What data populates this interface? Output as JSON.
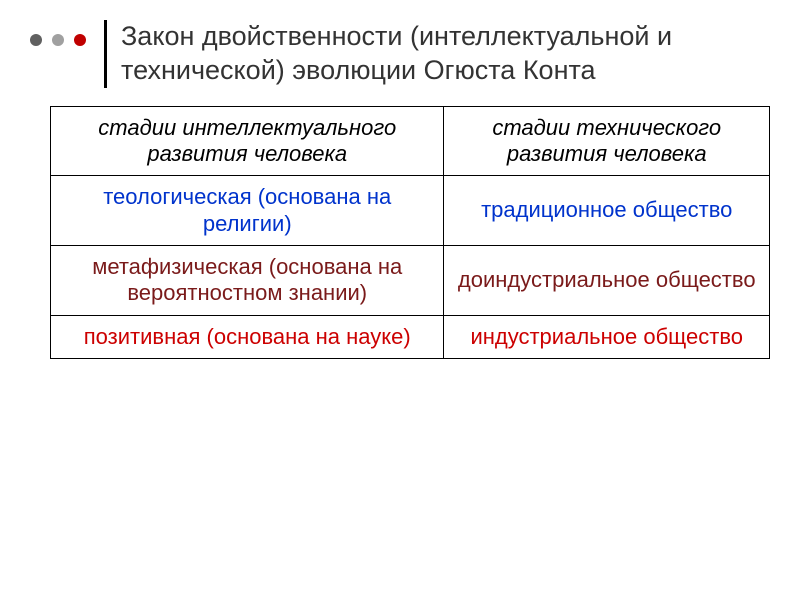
{
  "title": "Закон двойственности (интеллектуальной и технической) эволюции Огюста Конта",
  "bullets": {
    "colors": [
      "#606060",
      "#a0a0a0",
      "#c00000"
    ]
  },
  "table": {
    "border_color": "#000000",
    "header_color": "#000000",
    "row_colors": [
      "#0033cc",
      "#7a1a1a",
      "#cc0000"
    ],
    "columns": [
      "стадии интеллектуального развития человека",
      "стадии технического развития человека"
    ],
    "rows": [
      [
        "теологическая (основана на религии)",
        "традиционное общество"
      ],
      [
        "метафизическая (основана на вероятностном знании)",
        "доиндустриальное общество"
      ],
      [
        "позитивная (основана на науке)",
        "индустриальное общество"
      ]
    ]
  }
}
